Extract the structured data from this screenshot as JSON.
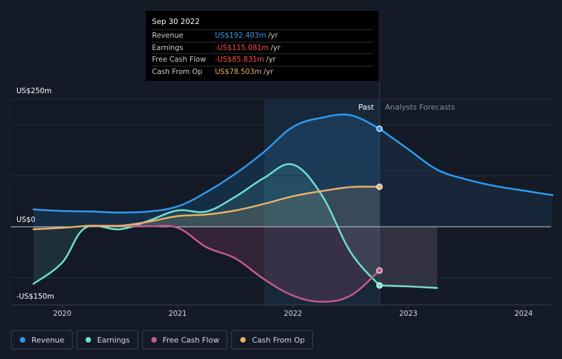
{
  "tooltip": {
    "date": "Sep 30 2022",
    "rows": [
      {
        "label": "Revenue",
        "value": "US$192.403m",
        "unit": "/yr",
        "color": "#2e9bf0"
      },
      {
        "label": "Earnings",
        "value": "-US$115.081m",
        "unit": "/yr",
        "color": "#ff4d4d"
      },
      {
        "label": "Free Cash Flow",
        "value": "-US$85.831m",
        "unit": "/yr",
        "color": "#ff4d4d"
      },
      {
        "label": "Cash From Op",
        "value": "US$78.503m",
        "unit": "/yr",
        "color": "#e8b06a"
      }
    ]
  },
  "labels": {
    "past": "Past",
    "forecast": "Analysts Forecasts"
  },
  "chart_data": {
    "type": "line",
    "ylim": [
      -150,
      250
    ],
    "yticks": [
      {
        "value": 250,
        "label": "US$250m"
      },
      {
        "value": 0,
        "label": "US$0"
      },
      {
        "value": -150,
        "label": "-US$150m"
      }
    ],
    "xlim": [
      2019.6,
      2024.25
    ],
    "xticks": [
      {
        "value": 2020,
        "label": "2020"
      },
      {
        "value": 2021,
        "label": "2021"
      },
      {
        "value": 2022,
        "label": "2022"
      },
      {
        "value": 2023,
        "label": "2023"
      },
      {
        "value": 2024,
        "label": "2024"
      }
    ],
    "highlight_start": 2021.75,
    "past_end": 2022.75,
    "series": [
      {
        "name": "Revenue",
        "color": "#2e9bf0",
        "points": [
          [
            2019.75,
            34
          ],
          [
            2020.0,
            31
          ],
          [
            2020.25,
            30
          ],
          [
            2020.5,
            28
          ],
          [
            2020.75,
            30
          ],
          [
            2021.0,
            40
          ],
          [
            2021.25,
            68
          ],
          [
            2021.5,
            104
          ],
          [
            2021.75,
            147
          ],
          [
            2022.0,
            196
          ],
          [
            2022.25,
            214
          ],
          [
            2022.5,
            219
          ],
          [
            2022.75,
            192.4
          ]
        ],
        "forecast": [
          [
            2022.75,
            192.4
          ],
          [
            2023.0,
            152
          ],
          [
            2023.25,
            112
          ],
          [
            2023.5,
            93
          ],
          [
            2023.75,
            80
          ],
          [
            2024.0,
            71
          ],
          [
            2024.25,
            62
          ]
        ]
      },
      {
        "name": "Earnings",
        "color": "#6fe0cf",
        "points": [
          [
            2019.75,
            -112
          ],
          [
            2020.0,
            -70
          ],
          [
            2020.2,
            -2
          ],
          [
            2020.5,
            -5
          ],
          [
            2020.75,
            12
          ],
          [
            2021.0,
            32
          ],
          [
            2021.25,
            30
          ],
          [
            2021.5,
            59
          ],
          [
            2021.75,
            96
          ],
          [
            2022.0,
            122
          ],
          [
            2022.25,
            62
          ],
          [
            2022.5,
            -50
          ],
          [
            2022.75,
            -115.1
          ]
        ],
        "forecast": [
          [
            2022.75,
            -115.1
          ],
          [
            2023.0,
            -117
          ],
          [
            2023.25,
            -120
          ]
        ]
      },
      {
        "name": "Free Cash Flow",
        "color": "#c85a8a",
        "points": [
          [
            2020.2,
            2
          ],
          [
            2020.5,
            2
          ],
          [
            2020.75,
            1
          ],
          [
            2021.0,
            -2
          ],
          [
            2021.25,
            -40
          ],
          [
            2021.5,
            -62
          ],
          [
            2021.75,
            -103
          ],
          [
            2022.0,
            -135
          ],
          [
            2022.25,
            -147
          ],
          [
            2022.5,
            -135
          ],
          [
            2022.75,
            -85.8
          ]
        ]
      },
      {
        "name": "Cash From Op",
        "color": "#e8b06a",
        "points": [
          [
            2019.75,
            -5
          ],
          [
            2020.0,
            -2
          ],
          [
            2020.25,
            2
          ],
          [
            2020.5,
            2
          ],
          [
            2020.75,
            10
          ],
          [
            2021.0,
            21
          ],
          [
            2021.25,
            24
          ],
          [
            2021.5,
            32
          ],
          [
            2021.75,
            45
          ],
          [
            2022.0,
            60
          ],
          [
            2022.25,
            70
          ],
          [
            2022.5,
            78
          ],
          [
            2022.75,
            78.5
          ]
        ]
      }
    ]
  },
  "legend": [
    {
      "label": "Revenue",
      "color": "#2e9bf0"
    },
    {
      "label": "Earnings",
      "color": "#6fe0cf"
    },
    {
      "label": "Free Cash Flow",
      "color": "#c85a8a"
    },
    {
      "label": "Cash From Op",
      "color": "#e8b06a"
    }
  ]
}
